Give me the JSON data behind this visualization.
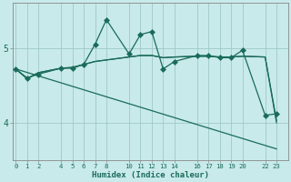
{
  "xlabel": "Humidex (Indice chaleur)",
  "bg_color": "#c8eaea",
  "grid_color": "#a0c8c8",
  "line_color": "#1a6b5a",
  "x_ticks": [
    0,
    1,
    2,
    4,
    5,
    6,
    7,
    8,
    10,
    11,
    12,
    13,
    14,
    16,
    17,
    18,
    19,
    20,
    22,
    23
  ],
  "ylim": [
    3.5,
    5.6
  ],
  "xlim": [
    -0.3,
    24.0
  ],
  "yticks": [
    4,
    5
  ],
  "lines": [
    {
      "x": [
        0,
        1,
        2,
        4,
        5,
        6,
        7,
        8,
        10,
        11,
        12,
        13,
        14,
        16,
        17,
        18,
        19,
        20,
        22,
        23
      ],
      "y": [
        4.72,
        4.6,
        4.65,
        4.73,
        4.73,
        4.78,
        5.05,
        5.38,
        4.92,
        5.18,
        5.22,
        4.72,
        4.82,
        4.9,
        4.9,
        4.87,
        4.87,
        4.97,
        4.1,
        4.12
      ],
      "marker": "D",
      "markersize": 3.0,
      "lw": 0.9
    },
    {
      "x": [
        0,
        1,
        2,
        4,
        5,
        6,
        7,
        8,
        10,
        11,
        12,
        13,
        14,
        16,
        17,
        18,
        19,
        20,
        22,
        23
      ],
      "y": [
        4.72,
        4.59,
        4.67,
        4.73,
        4.74,
        4.78,
        4.82,
        4.84,
        4.88,
        4.9,
        4.9,
        4.87,
        4.88,
        4.89,
        4.89,
        4.88,
        4.88,
        4.89,
        4.88,
        4.03
      ],
      "marker": null,
      "markersize": 0,
      "lw": 0.9
    },
    {
      "x": [
        0,
        1,
        2,
        4,
        5,
        6,
        7,
        8,
        10,
        11,
        12,
        13,
        14,
        16,
        17,
        18,
        19,
        20,
        22,
        23
      ],
      "y": [
        4.72,
        4.59,
        4.67,
        4.73,
        4.74,
        4.78,
        4.82,
        4.84,
        4.88,
        4.9,
        4.9,
        4.87,
        4.88,
        4.89,
        4.89,
        4.88,
        4.88,
        4.89,
        4.88,
        4.0
      ],
      "marker": null,
      "markersize": 0,
      "lw": 0.9
    },
    {
      "x": [
        0,
        23
      ],
      "y": [
        4.72,
        3.65
      ],
      "marker": null,
      "markersize": 0,
      "lw": 0.9
    }
  ]
}
